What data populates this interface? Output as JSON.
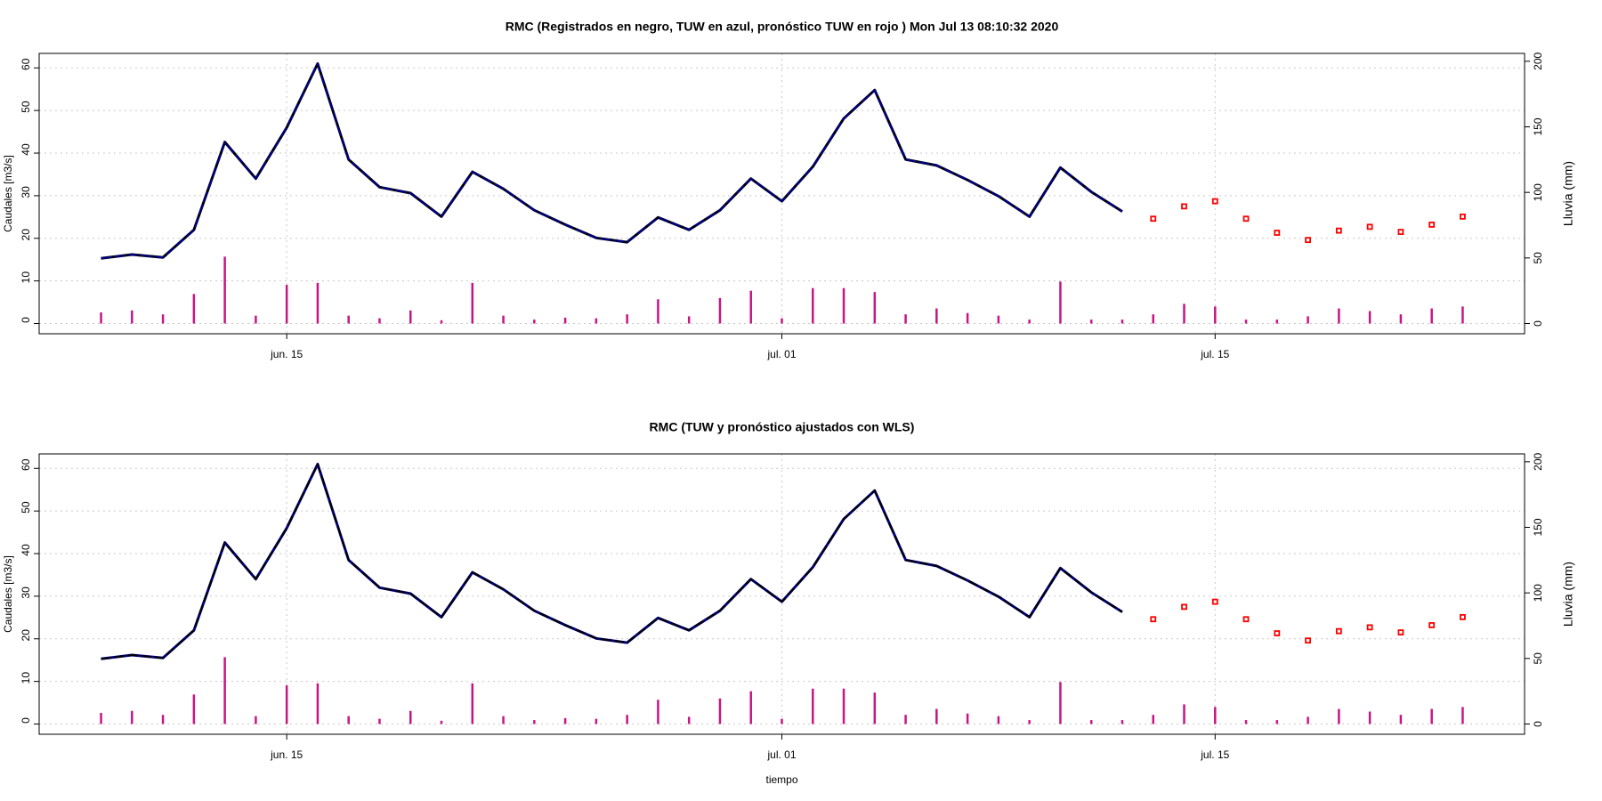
{
  "chart_data": [
    {
      "type": "line",
      "title": "RMC  (Registrados en negro, TUW en azul, pronóstico TUW en rojo ) Mon Jul 13 08:10:32 2020",
      "y_label": "Caudales [m3/s]",
      "y2_label": "Lluvia (mm)",
      "y2_color": "#c71585",
      "x": [
        "06-09",
        "06-10",
        "06-11",
        "06-12",
        "06-13",
        "06-14",
        "06-15",
        "06-16",
        "06-17",
        "06-18",
        "06-19",
        "06-20",
        "06-21",
        "06-22",
        "06-23",
        "06-24",
        "06-25",
        "06-26",
        "06-27",
        "06-28",
        "06-29",
        "06-30",
        "07-01",
        "07-02",
        "07-03",
        "07-04",
        "07-05",
        "07-06",
        "07-07",
        "07-08",
        "07-09",
        "07-10",
        "07-11",
        "07-12",
        "07-13",
        "07-14",
        "07-15",
        "07-16",
        "07-17",
        "07-18",
        "07-19",
        "07-20",
        "07-21",
        "07-22",
        "07-23"
      ],
      "xlim": [
        "06-07",
        "07-25"
      ],
      "xticks": [
        {
          "value": "06-15",
          "label": "jun. 15"
        },
        {
          "value": "07-01",
          "label": "jul. 01"
        },
        {
          "value": "07-15",
          "label": "jul. 15"
        }
      ],
      "ylim": [
        -2.4,
        63.4
      ],
      "yticks": [
        0,
        10,
        20,
        30,
        40,
        50,
        60
      ],
      "y2lim": [
        -7.8,
        206
      ],
      "y2ticks": [
        0,
        50,
        100,
        150,
        200
      ],
      "grid": true,
      "series": [
        {
          "kind": "bars",
          "axis": "y2",
          "color": "#c71585",
          "values": [
            8.5,
            10,
            7,
            22.5,
            51,
            6,
            29.5,
            31,
            6,
            4,
            10,
            2.5,
            31,
            6,
            3,
            4.5,
            4,
            7,
            18.5,
            5.5,
            19.5,
            25,
            4,
            27,
            27,
            24,
            7,
            11.5,
            8,
            6,
            3,
            32,
            3,
            3,
            7,
            15,
            13,
            3,
            3,
            5.5,
            11.5,
            9.5,
            7,
            11.5,
            13
          ]
        },
        {
          "kind": "line",
          "color": "#000000",
          "values": [
            15.3,
            16.2,
            15.5,
            22,
            42.6,
            34,
            46,
            61,
            38.5,
            32,
            30.6,
            25.1,
            35.6,
            31.6,
            26.6,
            23.2,
            20.1,
            19.1,
            24.9,
            22,
            26.6,
            34,
            28.7,
            36.8,
            48.1,
            54.8,
            38.5,
            37.1,
            33.7,
            29.9,
            25.1,
            36.6,
            30.9,
            26.3,
            null,
            null,
            null,
            null,
            null,
            null,
            null,
            null,
            null,
            null,
            null
          ]
        },
        {
          "kind": "line",
          "color": "#00008b",
          "values": [
            15.3,
            16.2,
            15.5,
            22,
            42.6,
            34,
            46,
            61,
            38.5,
            32,
            30.6,
            25.1,
            35.6,
            31.6,
            26.6,
            23.2,
            20.1,
            19.1,
            24.9,
            22,
            26.6,
            34,
            28.7,
            36.8,
            48.1,
            54.8,
            38.5,
            37.1,
            33.7,
            29.9,
            25.1,
            36.6,
            30.9,
            26.3,
            null,
            null,
            null,
            null,
            null,
            null,
            null,
            null,
            null,
            null,
            null
          ]
        },
        {
          "kind": "points",
          "color": "#ff0000",
          "values": [
            null,
            null,
            null,
            null,
            null,
            null,
            null,
            null,
            null,
            null,
            null,
            null,
            null,
            null,
            null,
            null,
            null,
            null,
            null,
            null,
            null,
            null,
            null,
            null,
            null,
            null,
            null,
            null,
            null,
            null,
            null,
            null,
            null,
            null,
            24.6,
            27.5,
            28.7,
            24.6,
            21.3,
            19.6,
            21.8,
            22.7,
            21.5,
            23.2,
            25.1
          ]
        }
      ]
    },
    {
      "type": "line",
      "title": "RMC  (TUW y pronóstico ajustados con WLS)",
      "x_label": "tiempo",
      "y_label": "Caudales [m3/s]",
      "y2_label": "Lluvia (mm)",
      "y2_color": "#c71585",
      "x": [
        "06-09",
        "06-10",
        "06-11",
        "06-12",
        "06-13",
        "06-14",
        "06-15",
        "06-16",
        "06-17",
        "06-18",
        "06-19",
        "06-20",
        "06-21",
        "06-22",
        "06-23",
        "06-24",
        "06-25",
        "06-26",
        "06-27",
        "06-28",
        "06-29",
        "06-30",
        "07-01",
        "07-02",
        "07-03",
        "07-04",
        "07-05",
        "07-06",
        "07-07",
        "07-08",
        "07-09",
        "07-10",
        "07-11",
        "07-12",
        "07-13",
        "07-14",
        "07-15",
        "07-16",
        "07-17",
        "07-18",
        "07-19",
        "07-20",
        "07-21",
        "07-22",
        "07-23"
      ],
      "xlim": [
        "06-07",
        "07-25"
      ],
      "xticks": [
        {
          "value": "06-15",
          "label": "jun. 15"
        },
        {
          "value": "07-01",
          "label": "jul. 01"
        },
        {
          "value": "07-15",
          "label": "jul. 15"
        }
      ],
      "ylim": [
        -2.4,
        63.4
      ],
      "yticks": [
        0,
        10,
        20,
        30,
        40,
        50,
        60
      ],
      "y2lim": [
        -7.8,
        206
      ],
      "y2ticks": [
        0,
        50,
        100,
        150,
        200
      ],
      "grid": true,
      "series": [
        {
          "kind": "bars",
          "axis": "y2",
          "color": "#c71585",
          "values": [
            8.5,
            10,
            7,
            22.5,
            51,
            6,
            29.5,
            31,
            6,
            4,
            10,
            2.5,
            31,
            6,
            3,
            4.5,
            4,
            7,
            18.5,
            5.5,
            19.5,
            25,
            4,
            27,
            27,
            24,
            7,
            11.5,
            8,
            6,
            3,
            32,
            3,
            3,
            7,
            15,
            13,
            3,
            3,
            5.5,
            11.5,
            9.5,
            7,
            11.5,
            13
          ]
        },
        {
          "kind": "line",
          "color": "#00008b",
          "values": [
            15.3,
            16.2,
            15.5,
            22,
            42.6,
            34,
            46,
            61,
            38.5,
            32,
            30.6,
            25.1,
            35.6,
            31.6,
            26.6,
            23.2,
            20.1,
            19.1,
            24.9,
            22,
            26.6,
            34,
            28.7,
            36.8,
            48.1,
            54.8,
            38.5,
            37.1,
            33.7,
            29.9,
            25.1,
            36.6,
            30.9,
            26.3,
            null,
            null,
            null,
            null,
            null,
            null,
            null,
            null,
            null,
            null,
            null
          ]
        },
        {
          "kind": "line",
          "color": "#000000",
          "values": [
            15.3,
            16.2,
            15.5,
            22,
            42.6,
            34,
            46,
            61,
            38.5,
            32,
            30.6,
            25.1,
            35.6,
            31.6,
            26.6,
            23.2,
            20.1,
            19.1,
            24.9,
            22,
            26.6,
            34,
            28.7,
            36.8,
            48.1,
            54.8,
            38.5,
            37.1,
            33.7,
            29.9,
            25.1,
            36.6,
            30.9,
            26.3,
            null,
            null,
            null,
            null,
            null,
            null,
            null,
            null,
            null,
            null,
            null
          ]
        },
        {
          "kind": "points",
          "color": "#ff0000",
          "values": [
            null,
            null,
            null,
            null,
            null,
            null,
            null,
            null,
            null,
            null,
            null,
            null,
            null,
            null,
            null,
            null,
            null,
            null,
            null,
            null,
            null,
            null,
            null,
            null,
            null,
            null,
            null,
            null,
            null,
            null,
            null,
            null,
            null,
            null,
            24.6,
            27.5,
            28.7,
            24.6,
            21.3,
            19.6,
            21.8,
            22.7,
            21.5,
            23.2,
            25.1
          ]
        }
      ]
    }
  ]
}
